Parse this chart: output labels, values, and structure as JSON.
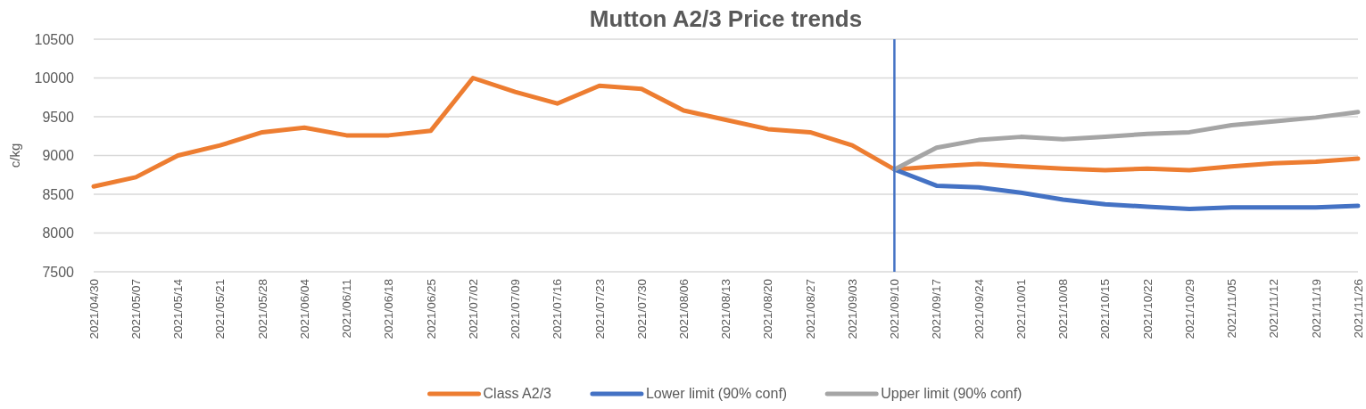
{
  "chart_data": {
    "type": "line",
    "title": "Mutton A2/3 Price trends",
    "ylabel": "c/kg",
    "categories": [
      "2021/04/30",
      "2021/05/07",
      "2021/05/14",
      "2021/05/21",
      "2021/05/28",
      "2021/06/04",
      "2021/06/11",
      "2021/06/18",
      "2021/06/25",
      "2021/07/02",
      "2021/07/09",
      "2021/07/16",
      "2021/07/23",
      "2021/07/30",
      "2021/08/06",
      "2021/08/13",
      "2021/08/20",
      "2021/08/27",
      "2021/09/03",
      "2021/09/10",
      "2021/09/17",
      "2021/09/24",
      "2021/10/01",
      "2021/10/08",
      "2021/10/15",
      "2021/10/22",
      "2021/10/29",
      "2021/11/05",
      "2021/11/12",
      "2021/11/19",
      "2021/11/26"
    ],
    "series": [
      {
        "name": "Class A2/3",
        "color": "#ed7d31",
        "values": [
          8600,
          8720,
          9000,
          9130,
          9300,
          9360,
          9260,
          9260,
          9320,
          10000,
          9820,
          9670,
          9900,
          9860,
          9580,
          9460,
          9340,
          9300,
          9130,
          8820,
          8860,
          8890,
          8860,
          8830,
          8810,
          8830,
          8810,
          8860,
          8900,
          8920,
          8960
        ]
      },
      {
        "name": "Lower limit (90% conf)",
        "color": "#4472c4",
        "values": [
          null,
          null,
          null,
          null,
          null,
          null,
          null,
          null,
          null,
          null,
          null,
          null,
          null,
          null,
          null,
          null,
          null,
          null,
          null,
          8820,
          8610,
          8590,
          8520,
          8430,
          8370,
          8340,
          8310,
          8330,
          8330,
          8330,
          8350
        ]
      },
      {
        "name": "Upper limit (90% conf)",
        "color": "#a5a5a5",
        "values": [
          null,
          null,
          null,
          null,
          null,
          null,
          null,
          null,
          null,
          null,
          null,
          null,
          null,
          null,
          null,
          null,
          null,
          null,
          null,
          8820,
          9100,
          9200,
          9240,
          9210,
          9240,
          9280,
          9300,
          9390,
          9440,
          9490,
          9560
        ]
      }
    ],
    "ylim": [
      7500,
      10500
    ],
    "yticks": [
      7500,
      8000,
      8500,
      9000,
      9500,
      10000,
      10500
    ],
    "grid": "y",
    "legend": "bottom",
    "line_style": "solid",
    "ref_lines": [
      {
        "axis": "x",
        "value": "2021/09/10",
        "color": "#4472c4"
      }
    ]
  }
}
